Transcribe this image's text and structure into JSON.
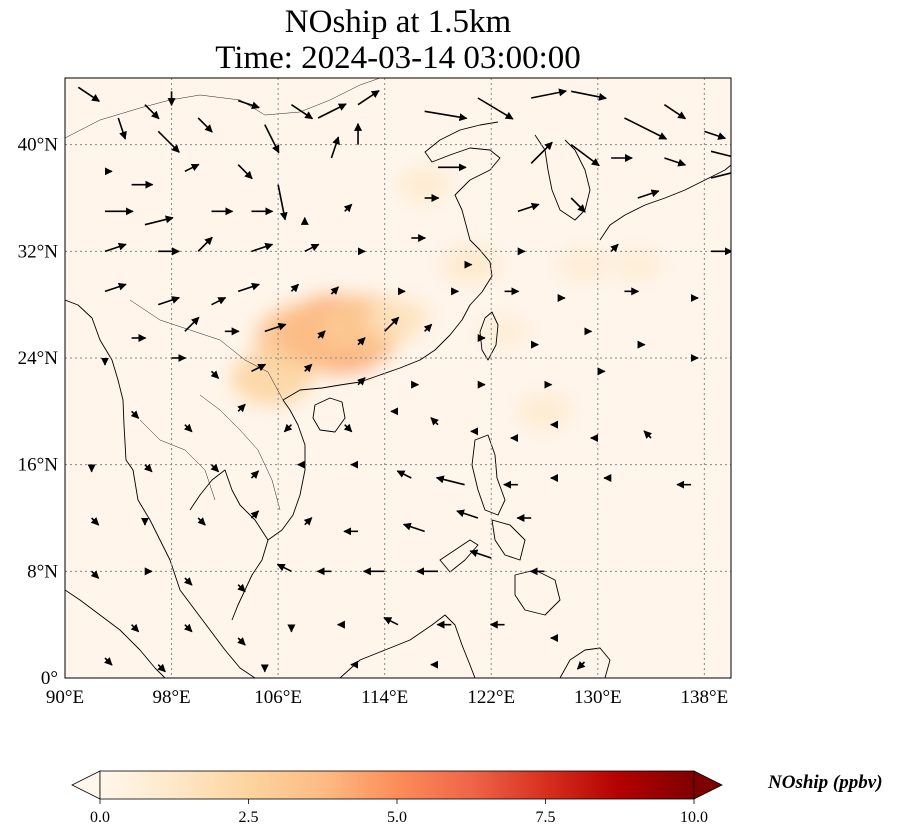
{
  "title": {
    "line1": "NOship at 1.5km",
    "line2": "Time: 2024-03-14 03:00:00"
  },
  "map": {
    "lon_range": [
      90,
      140
    ],
    "lat_range": [
      0,
      45
    ],
    "lon_ticks": [
      {
        "value": 90,
        "label": "90°E"
      },
      {
        "value": 98,
        "label": "98°E"
      },
      {
        "value": 106,
        "label": "106°E"
      },
      {
        "value": 114,
        "label": "114°E"
      },
      {
        "value": 122,
        "label": "122°E"
      },
      {
        "value": 130,
        "label": "130°E"
      },
      {
        "value": 138,
        "label": "138°E"
      }
    ],
    "lat_ticks": [
      {
        "value": 0,
        "label": "0°"
      },
      {
        "value": 8,
        "label": "8°N"
      },
      {
        "value": 16,
        "label": "16°N"
      },
      {
        "value": 24,
        "label": "24°N"
      },
      {
        "value": 32,
        "label": "32°N"
      },
      {
        "value": 40,
        "label": "40°N"
      }
    ],
    "gridlines": true,
    "background_color": "#fff5eb",
    "concentration_hotspots": [
      {
        "lon": 110.5,
        "lat": 25.8,
        "value": 4.5
      },
      {
        "lon": 108.0,
        "lat": 25.5,
        "value": 3.5
      },
      {
        "lon": 112.5,
        "lat": 26.5,
        "value": 3.0
      },
      {
        "lon": 105.5,
        "lat": 22.5,
        "value": 2.5
      },
      {
        "lon": 115.0,
        "lat": 27.0,
        "value": 1.5
      },
      {
        "lon": 120.5,
        "lat": 31.0,
        "value": 1.2
      },
      {
        "lon": 117.0,
        "lat": 37.0,
        "value": 1.0
      },
      {
        "lon": 126.0,
        "lat": 20.0,
        "value": 1.0
      },
      {
        "lon": 129.0,
        "lat": 31.0,
        "value": 0.9
      },
      {
        "lon": 133.0,
        "lat": 31.0,
        "value": 0.8
      },
      {
        "lon": 123.0,
        "lat": 26.0,
        "value": 0.8
      }
    ]
  },
  "colorbar": {
    "title": "NOship (ppbv)",
    "min": 0,
    "max": 10,
    "extend": "both",
    "colormap": "OrRd",
    "colors": [
      "#fff7ec",
      "#fee8c8",
      "#fdd49e",
      "#fdbb84",
      "#fc8d59",
      "#ef6548",
      "#d7301f",
      "#b30000",
      "#7f0000"
    ],
    "ticks": [
      {
        "value": 0,
        "label": "0.0"
      },
      {
        "value": 2.5,
        "label": "2.5"
      },
      {
        "value": 5,
        "label": "5.0"
      },
      {
        "value": 7.5,
        "label": "7.5"
      },
      {
        "value": 10,
        "label": "10.0"
      }
    ]
  },
  "wind_vectors": [
    {
      "lon": 91,
      "lat": 44.3,
      "u": 3,
      "v": -2
    },
    {
      "lon": 94,
      "lat": 42,
      "u": 1,
      "v": -3
    },
    {
      "lon": 96,
      "lat": 43,
      "u": 2,
      "v": -2
    },
    {
      "lon": 98,
      "lat": 44,
      "u": 0,
      "v": -2
    },
    {
      "lon": 97,
      "lat": 41,
      "u": 3,
      "v": -3
    },
    {
      "lon": 100,
      "lat": 42,
      "u": 2,
      "v": -2
    },
    {
      "lon": 103,
      "lat": 43.3,
      "u": 3,
      "v": -1
    },
    {
      "lon": 105,
      "lat": 41.5,
      "u": 2,
      "v": -4
    },
    {
      "lon": 107,
      "lat": 43,
      "u": 3,
      "v": -2
    },
    {
      "lon": 109,
      "lat": 42,
      "u": 4,
      "v": 2
    },
    {
      "lon": 112,
      "lat": 43,
      "u": 3,
      "v": 2
    },
    {
      "lon": 117,
      "lat": 42.5,
      "u": 6,
      "v": -1
    },
    {
      "lon": 121,
      "lat": 43.5,
      "u": 5,
      "v": -3
    },
    {
      "lon": 125,
      "lat": 43.5,
      "u": 5,
      "v": 1
    },
    {
      "lon": 128,
      "lat": 44,
      "u": 5,
      "v": -1
    },
    {
      "lon": 132,
      "lat": 42,
      "u": 6,
      "v": -3
    },
    {
      "lon": 135,
      "lat": 43,
      "u": 3,
      "v": -2
    },
    {
      "lon": 138,
      "lat": 41,
      "u": 3,
      "v": -1
    },
    {
      "lon": 93,
      "lat": 38,
      "u": 1,
      "v": 0
    },
    {
      "lon": 95,
      "lat": 37,
      "u": 3,
      "v": 0
    },
    {
      "lon": 99,
      "lat": 38,
      "u": 2,
      "v": 1
    },
    {
      "lon": 103,
      "lat": 38.5,
      "u": 2,
      "v": -2
    },
    {
      "lon": 106,
      "lat": 37,
      "u": 1,
      "v": -5
    },
    {
      "lon": 110,
      "lat": 39,
      "u": 1,
      "v": 3
    },
    {
      "lon": 112,
      "lat": 40,
      "u": 0,
      "v": 3
    },
    {
      "lon": 118,
      "lat": 38.3,
      "u": 4,
      "v": 0
    },
    {
      "lon": 125,
      "lat": 38.6,
      "u": 3,
      "v": 3
    },
    {
      "lon": 128,
      "lat": 40,
      "u": 4,
      "v": -3
    },
    {
      "lon": 131,
      "lat": 39,
      "u": 3,
      "v": 0
    },
    {
      "lon": 135,
      "lat": 39,
      "u": 3,
      "v": -1
    },
    {
      "lon": 138.5,
      "lat": 39.5,
      "u": 4,
      "v": -1
    },
    {
      "lon": 138.5,
      "lat": 37.5,
      "u": 4,
      "v": 1
    },
    {
      "lon": 93,
      "lat": 35,
      "u": 4,
      "v": 0
    },
    {
      "lon": 96,
      "lat": 34,
      "u": 4,
      "v": 1
    },
    {
      "lon": 101,
      "lat": 35,
      "u": 3,
      "v": 0
    },
    {
      "lon": 104,
      "lat": 35,
      "u": 3,
      "v": 0
    },
    {
      "lon": 108,
      "lat": 34,
      "u": 0,
      "v": 1
    },
    {
      "lon": 111,
      "lat": 35,
      "u": 1,
      "v": 1
    },
    {
      "lon": 117,
      "lat": 36,
      "u": 2,
      "v": 0
    },
    {
      "lon": 124,
      "lat": 35,
      "u": 3,
      "v": 1
    },
    {
      "lon": 128,
      "lat": 36,
      "u": 2,
      "v": -2
    },
    {
      "lon": 133,
      "lat": 36,
      "u": 3,
      "v": 1
    },
    {
      "lon": 93,
      "lat": 32,
      "u": 3,
      "v": 1
    },
    {
      "lon": 97,
      "lat": 32,
      "u": 3,
      "v": 0
    },
    {
      "lon": 100,
      "lat": 32,
      "u": 2,
      "v": 2
    },
    {
      "lon": 104,
      "lat": 32,
      "u": 3,
      "v": 1
    },
    {
      "lon": 108,
      "lat": 32,
      "u": 2,
      "v": 1
    },
    {
      "lon": 112,
      "lat": 32,
      "u": 1,
      "v": 0
    },
    {
      "lon": 116,
      "lat": 33,
      "u": 2,
      "v": 0
    },
    {
      "lon": 120,
      "lat": 31,
      "u": 1,
      "v": 0
    },
    {
      "lon": 124,
      "lat": 32,
      "u": 1,
      "v": 0
    },
    {
      "lon": 131,
      "lat": 32,
      "u": 1,
      "v": 1
    },
    {
      "lon": 138.5,
      "lat": 32,
      "u": 3,
      "v": 0
    },
    {
      "lon": 93,
      "lat": 29,
      "u": 3,
      "v": 1
    },
    {
      "lon": 97,
      "lat": 28,
      "u": 3,
      "v": 1
    },
    {
      "lon": 101,
      "lat": 28,
      "u": 2,
      "v": 1
    },
    {
      "lon": 103,
      "lat": 29,
      "u": 3,
      "v": 1
    },
    {
      "lon": 107,
      "lat": 29,
      "u": 1,
      "v": 1
    },
    {
      "lon": 110,
      "lat": 28.8,
      "u": 1,
      "v": 1
    },
    {
      "lon": 115,
      "lat": 29,
      "u": 1,
      "v": 0
    },
    {
      "lon": 119,
      "lat": 29,
      "u": 1,
      "v": 0
    },
    {
      "lon": 123,
      "lat": 29,
      "u": 2,
      "v": 0
    },
    {
      "lon": 127,
      "lat": 28.5,
      "u": 1,
      "v": 0
    },
    {
      "lon": 132,
      "lat": 29,
      "u": 2,
      "v": 0
    },
    {
      "lon": 137,
      "lat": 28.5,
      "u": 1,
      "v": 0
    },
    {
      "lon": 95,
      "lat": 25.5,
      "u": 2,
      "v": 0
    },
    {
      "lon": 99,
      "lat": 26,
      "u": 2,
      "v": 2
    },
    {
      "lon": 102,
      "lat": 26,
      "u": 2,
      "v": 0
    },
    {
      "lon": 105,
      "lat": 26,
      "u": 3,
      "v": 1
    },
    {
      "lon": 109,
      "lat": 25.5,
      "u": 1,
      "v": 1
    },
    {
      "lon": 112,
      "lat": 25,
      "u": 1,
      "v": 1
    },
    {
      "lon": 114,
      "lat": 26,
      "u": 2,
      "v": 2
    },
    {
      "lon": 117,
      "lat": 26,
      "u": 1,
      "v": 1
    },
    {
      "lon": 121,
      "lat": 25.5,
      "u": 1,
      "v": 0
    },
    {
      "lon": 125,
      "lat": 25,
      "u": 1,
      "v": 0
    },
    {
      "lon": 129,
      "lat": 26,
      "u": 1,
      "v": 0
    },
    {
      "lon": 133,
      "lat": 25,
      "u": 1,
      "v": 0
    },
    {
      "lon": 137,
      "lat": 24,
      "u": 1,
      "v": 0
    },
    {
      "lon": 93,
      "lat": 24,
      "u": 0,
      "v": -1
    },
    {
      "lon": 98,
      "lat": 24,
      "u": 2,
      "v": 0
    },
    {
      "lon": 101,
      "lat": 23,
      "u": 1,
      "v": -1
    },
    {
      "lon": 104,
      "lat": 23,
      "u": 2,
      "v": 1
    },
    {
      "lon": 108,
      "lat": 23,
      "u": 1,
      "v": 1
    },
    {
      "lon": 112,
      "lat": 22,
      "u": 1,
      "v": 1
    },
    {
      "lon": 116,
      "lat": 22,
      "u": 1,
      "v": 0
    },
    {
      "lon": 121,
      "lat": 22,
      "u": 1,
      "v": 0
    },
    {
      "lon": 126,
      "lat": 22,
      "u": 1,
      "v": 0
    },
    {
      "lon": 130,
      "lat": 23,
      "u": 1,
      "v": 0
    },
    {
      "lon": 95,
      "lat": 20,
      "u": 1,
      "v": -1
    },
    {
      "lon": 99,
      "lat": 19,
      "u": 1,
      "v": -1
    },
    {
      "lon": 103,
      "lat": 20,
      "u": 1,
      "v": 1
    },
    {
      "lon": 107,
      "lat": 19,
      "u": -1,
      "v": -1
    },
    {
      "lon": 111,
      "lat": 19,
      "u": 1,
      "v": -1
    },
    {
      "lon": 115,
      "lat": 20,
      "u": -1,
      "v": 0
    },
    {
      "lon": 118,
      "lat": 19,
      "u": -1,
      "v": 1
    },
    {
      "lon": 121,
      "lat": 18.5,
      "u": -1,
      "v": 0
    },
    {
      "lon": 124,
      "lat": 18,
      "u": -1,
      "v": 0
    },
    {
      "lon": 127,
      "lat": 19,
      "u": -1,
      "v": 0
    },
    {
      "lon": 130,
      "lat": 18,
      "u": -1,
      "v": 0
    },
    {
      "lon": 134,
      "lat": 18,
      "u": -1,
      "v": 1
    },
    {
      "lon": 92,
      "lat": 16,
      "u": 0,
      "v": -1
    },
    {
      "lon": 96,
      "lat": 16,
      "u": 1,
      "v": -1
    },
    {
      "lon": 101,
      "lat": 16,
      "u": 1,
      "v": -1
    },
    {
      "lon": 104,
      "lat": 15,
      "u": 1,
      "v": 1
    },
    {
      "lon": 108,
      "lat": 16,
      "u": -1,
      "v": 0
    },
    {
      "lon": 112,
      "lat": 16,
      "u": -1,
      "v": 0
    },
    {
      "lon": 116,
      "lat": 15,
      "u": -2,
      "v": 1
    },
    {
      "lon": 120,
      "lat": 14.5,
      "u": -4,
      "v": 1
    },
    {
      "lon": 124,
      "lat": 14.5,
      "u": -2,
      "v": 0
    },
    {
      "lon": 127,
      "lat": 15,
      "u": -1,
      "v": 0
    },
    {
      "lon": 131,
      "lat": 15,
      "u": -1,
      "v": 0
    },
    {
      "lon": 137,
      "lat": 14.5,
      "u": -2,
      "v": 0
    },
    {
      "lon": 92,
      "lat": 12,
      "u": 1,
      "v": -1
    },
    {
      "lon": 96,
      "lat": 12,
      "u": 0,
      "v": -1
    },
    {
      "lon": 100,
      "lat": 12,
      "u": 1,
      "v": -1
    },
    {
      "lon": 104,
      "lat": 12,
      "u": 1,
      "v": 1
    },
    {
      "lon": 108,
      "lat": 11.5,
      "u": 1,
      "v": 1
    },
    {
      "lon": 112,
      "lat": 11,
      "u": -2,
      "v": 0
    },
    {
      "lon": 117,
      "lat": 11,
      "u": -3,
      "v": 1
    },
    {
      "lon": 121,
      "lat": 12,
      "u": -3,
      "v": 1
    },
    {
      "lon": 125,
      "lat": 12,
      "u": -2,
      "v": 0
    },
    {
      "lon": 92,
      "lat": 8,
      "u": 1,
      "v": -1
    },
    {
      "lon": 96,
      "lat": 8,
      "u": 1,
      "v": 0
    },
    {
      "lon": 99,
      "lat": 7.5,
      "u": 1,
      "v": -1
    },
    {
      "lon": 103,
      "lat": 7,
      "u": 1,
      "v": -1
    },
    {
      "lon": 107,
      "lat": 8,
      "u": -2,
      "v": 1
    },
    {
      "lon": 110,
      "lat": 8,
      "u": -2,
      "v": 0
    },
    {
      "lon": 114,
      "lat": 8,
      "u": -3,
      "v": 0
    },
    {
      "lon": 118,
      "lat": 8,
      "u": -3,
      "v": 0
    },
    {
      "lon": 122,
      "lat": 9,
      "u": -3,
      "v": 1
    },
    {
      "lon": 126,
      "lat": 8,
      "u": -2,
      "v": 0
    },
    {
      "lon": 95,
      "lat": 4,
      "u": 1,
      "v": -1
    },
    {
      "lon": 99,
      "lat": 4,
      "u": 1,
      "v": -1
    },
    {
      "lon": 103,
      "lat": 3,
      "u": 1,
      "v": -1
    },
    {
      "lon": 107,
      "lat": 4,
      "u": 0,
      "v": -1
    },
    {
      "lon": 111,
      "lat": 4,
      "u": -1,
      "v": 0
    },
    {
      "lon": 115,
      "lat": 4,
      "u": -2,
      "v": 1
    },
    {
      "lon": 119,
      "lat": 4,
      "u": -2,
      "v": 0
    },
    {
      "lon": 123,
      "lat": 4,
      "u": -2,
      "v": 0
    },
    {
      "lon": 127,
      "lat": 3,
      "u": -1,
      "v": 0
    },
    {
      "lon": 93,
      "lat": 1.5,
      "u": 1,
      "v": -1
    },
    {
      "lon": 97,
      "lat": 1,
      "u": 1,
      "v": -1
    },
    {
      "lon": 105,
      "lat": 1,
      "u": 0,
      "v": -1
    },
    {
      "lon": 112,
      "lat": 1,
      "u": -1,
      "v": 0
    },
    {
      "lon": 118,
      "lat": 1,
      "u": -1,
      "v": 0
    },
    {
      "lon": 129,
      "lat": 1.2,
      "u": -1,
      "v": -1
    }
  ]
}
